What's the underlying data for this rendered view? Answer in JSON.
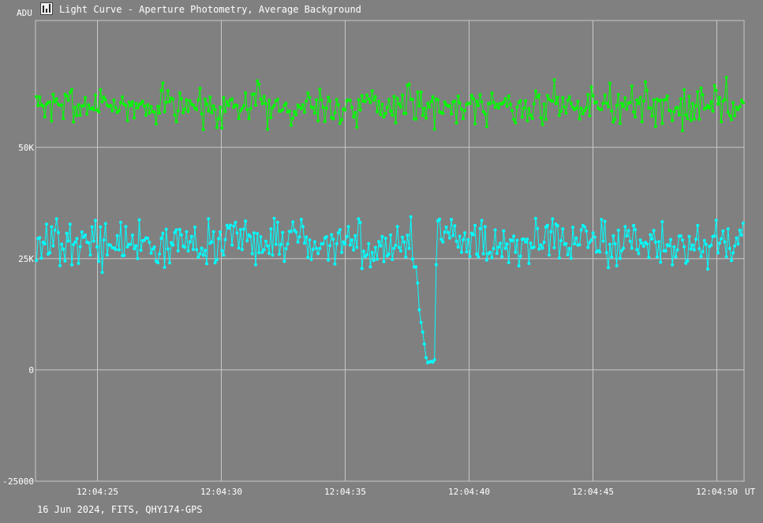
{
  "window": {
    "title": "Light Curve - Aperture Photometry, Average Background",
    "icon": "chart-icon"
  },
  "footer": {
    "caption": "16 Jun 2024, FITS, QHY174-GPS"
  },
  "chart_data": {
    "type": "line",
    "ylabel": "ADU",
    "xlabel": "UT",
    "ylim": [
      -25000,
      78500
    ],
    "yticks": [
      {
        "value": 50000,
        "label": "50K"
      },
      {
        "value": 25000,
        "label": "25K"
      },
      {
        "value": 0,
        "label": "0"
      },
      {
        "value": -25000,
        "label": "-25000"
      }
    ],
    "xlim_seconds": [
      262.5,
      291.1
    ],
    "xticks": [
      {
        "value": 265,
        "label": "12:04:25"
      },
      {
        "value": 270,
        "label": "12:04:30"
      },
      {
        "value": 275,
        "label": "12:04:35"
      },
      {
        "value": 280,
        "label": "12:04:40"
      },
      {
        "value": 285,
        "label": "12:04:45"
      },
      {
        "value": 290,
        "label": "12:04:50"
      }
    ],
    "grid": true,
    "series": [
      {
        "color": "#00ff00",
        "mean": 59500,
        "spread": 3800,
        "n": 420,
        "seed": 7
      },
      {
        "color": "#00ffff",
        "mean": 28500,
        "spread": 4500,
        "n": 420,
        "seed": 13,
        "occultation": {
          "start": 278.3,
          "end": 278.6,
          "ingress_start": 277.7,
          "egress_end": 278.7,
          "level": 1000
        }
      }
    ]
  }
}
